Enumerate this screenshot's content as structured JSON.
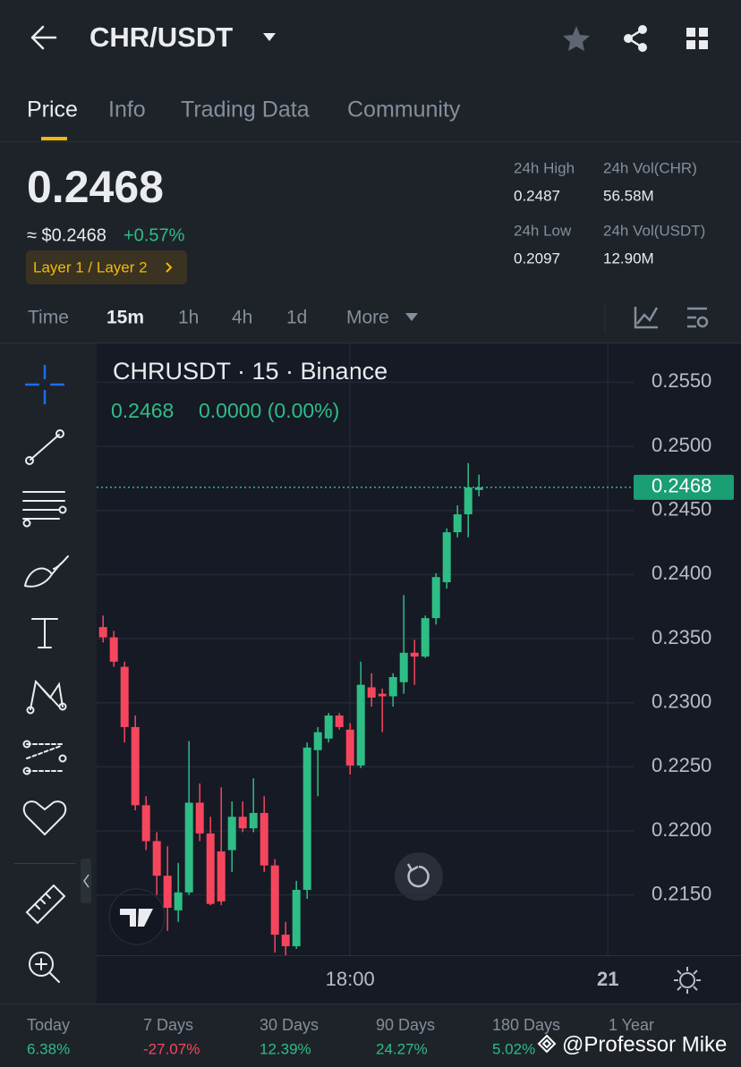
{
  "header": {
    "title": "CHR/USDT"
  },
  "tabs": [
    "Price",
    "Info",
    "Trading Data",
    "Community"
  ],
  "price": {
    "last": "0.2468",
    "usd": "≈ $0.2468",
    "change": "+0.57%",
    "tag": "Layer 1 / Layer 2"
  },
  "stats": [
    {
      "label": "24h High",
      "value": "0.2487"
    },
    {
      "label": "24h Vol(CHR)",
      "value": "56.58M"
    },
    {
      "label": "24h Low",
      "value": "0.2097"
    },
    {
      "label": "24h Vol(USDT)",
      "value": "12.90M"
    }
  ],
  "intervals": [
    "Time",
    "15m",
    "1h",
    "4h",
    "1d",
    "More"
  ],
  "chart_data": {
    "type": "candlestick",
    "title": "CHRUSDT · 15 · Binance",
    "legend": [
      "0.2468",
      "0.0000 (0.00%)"
    ],
    "up_color": "#2ebd85",
    "down_color": "#f6465d",
    "grid": true,
    "last_price": 0.2468,
    "x": [
      12.25,
      12.5,
      12.75,
      13,
      13.25,
      13.5,
      13.75,
      14,
      14.25,
      14.5,
      14.75,
      15,
      15.25,
      15.5,
      15.75,
      16,
      16.25,
      16.5,
      16.75,
      17,
      17.25,
      17.5,
      17.75,
      18,
      18.25,
      18.5,
      18.75,
      19,
      19.25,
      19.5,
      19.75,
      20,
      20.25,
      20.5,
      20.75,
      21
    ],
    "open": [
      0.2359,
      0.2351,
      0.2328,
      0.2281,
      0.222,
      0.2192,
      0.2165,
      0.2138,
      0.2152,
      0.2222,
      0.2198,
      0.2184,
      0.2185,
      0.2211,
      0.2202,
      0.2214,
      0.2173,
      0.2119,
      0.211,
      0.2154,
      0.2263,
      0.2272,
      0.229,
      0.2279,
      0.2251,
      0.2312,
      0.2307,
      0.2305,
      0.2316,
      0.2339,
      0.2336,
      0.2366,
      0.2394,
      0.2433,
      0.2447,
      0.2466
    ],
    "high": [
      0.2368,
      0.2356,
      0.2332,
      0.229,
      0.2227,
      0.2199,
      0.2188,
      0.2175,
      0.227,
      0.2237,
      0.2211,
      0.2234,
      0.2223,
      0.2223,
      0.2241,
      0.2227,
      0.2178,
      0.2129,
      0.2161,
      0.2269,
      0.2281,
      0.2292,
      0.2292,
      0.2284,
      0.2332,
      0.2323,
      0.2311,
      0.2323,
      0.2384,
      0.2349,
      0.2368,
      0.2401,
      0.2436,
      0.2454,
      0.2487,
      0.2478
    ],
    "low": [
      0.2347,
      0.2328,
      0.2269,
      0.2216,
      0.2185,
      0.215,
      0.2122,
      0.2129,
      0.215,
      0.2192,
      0.2142,
      0.2142,
      0.2168,
      0.2199,
      0.2199,
      0.2168,
      0.2105,
      0.2103,
      0.2108,
      0.2147,
      0.2227,
      0.2269,
      0.2279,
      0.2244,
      0.2249,
      0.2297,
      0.2277,
      0.2297,
      0.2307,
      0.2314,
      0.2335,
      0.2361,
      0.2389,
      0.2429,
      0.2429,
      0.2461
    ],
    "close": [
      0.2351,
      0.2332,
      0.2281,
      0.222,
      0.2192,
      0.2165,
      0.214,
      0.2152,
      0.2222,
      0.2198,
      0.2143,
      0.2145,
      0.2211,
      0.2202,
      0.2214,
      0.2173,
      0.2119,
      0.211,
      0.2154,
      0.2265,
      0.2277,
      0.229,
      0.2281,
      0.2251,
      0.2314,
      0.2304,
      0.2305,
      0.232,
      0.2339,
      0.2336,
      0.2366,
      0.2398,
      0.2433,
      0.2447,
      0.2468,
      0.2468
    ],
    "xlim": [
      12.1,
      24.6
    ],
    "xticks": [
      {
        "value": 18,
        "label": "18:00"
      },
      {
        "value": 24,
        "label": "21"
      }
    ],
    "ylim": [
      0.2103,
      0.2581
    ],
    "yticks": [
      {
        "value": 0.215,
        "label": "0.2150"
      },
      {
        "value": 0.22,
        "label": "0.2200"
      },
      {
        "value": 0.225,
        "label": "0.2250"
      },
      {
        "value": 0.23,
        "label": "0.2300"
      },
      {
        "value": 0.235,
        "label": "0.2350"
      },
      {
        "value": 0.24,
        "label": "0.2400"
      },
      {
        "value": 0.245,
        "label": "0.2450"
      },
      {
        "value": 0.25,
        "label": "0.2500"
      },
      {
        "value": 0.255,
        "label": "0.2550"
      }
    ]
  },
  "performance": [
    {
      "label": "Today",
      "value": "6.38%"
    },
    {
      "label": "7 Days",
      "value": "-27.07%"
    },
    {
      "label": "30 Days",
      "value": "12.39%"
    },
    {
      "label": "90 Days",
      "value": "24.27%"
    },
    {
      "label": "180 Days",
      "value": "5.02%"
    },
    {
      "label": "1 Year"
    }
  ],
  "watermark": "@Professor Mike"
}
